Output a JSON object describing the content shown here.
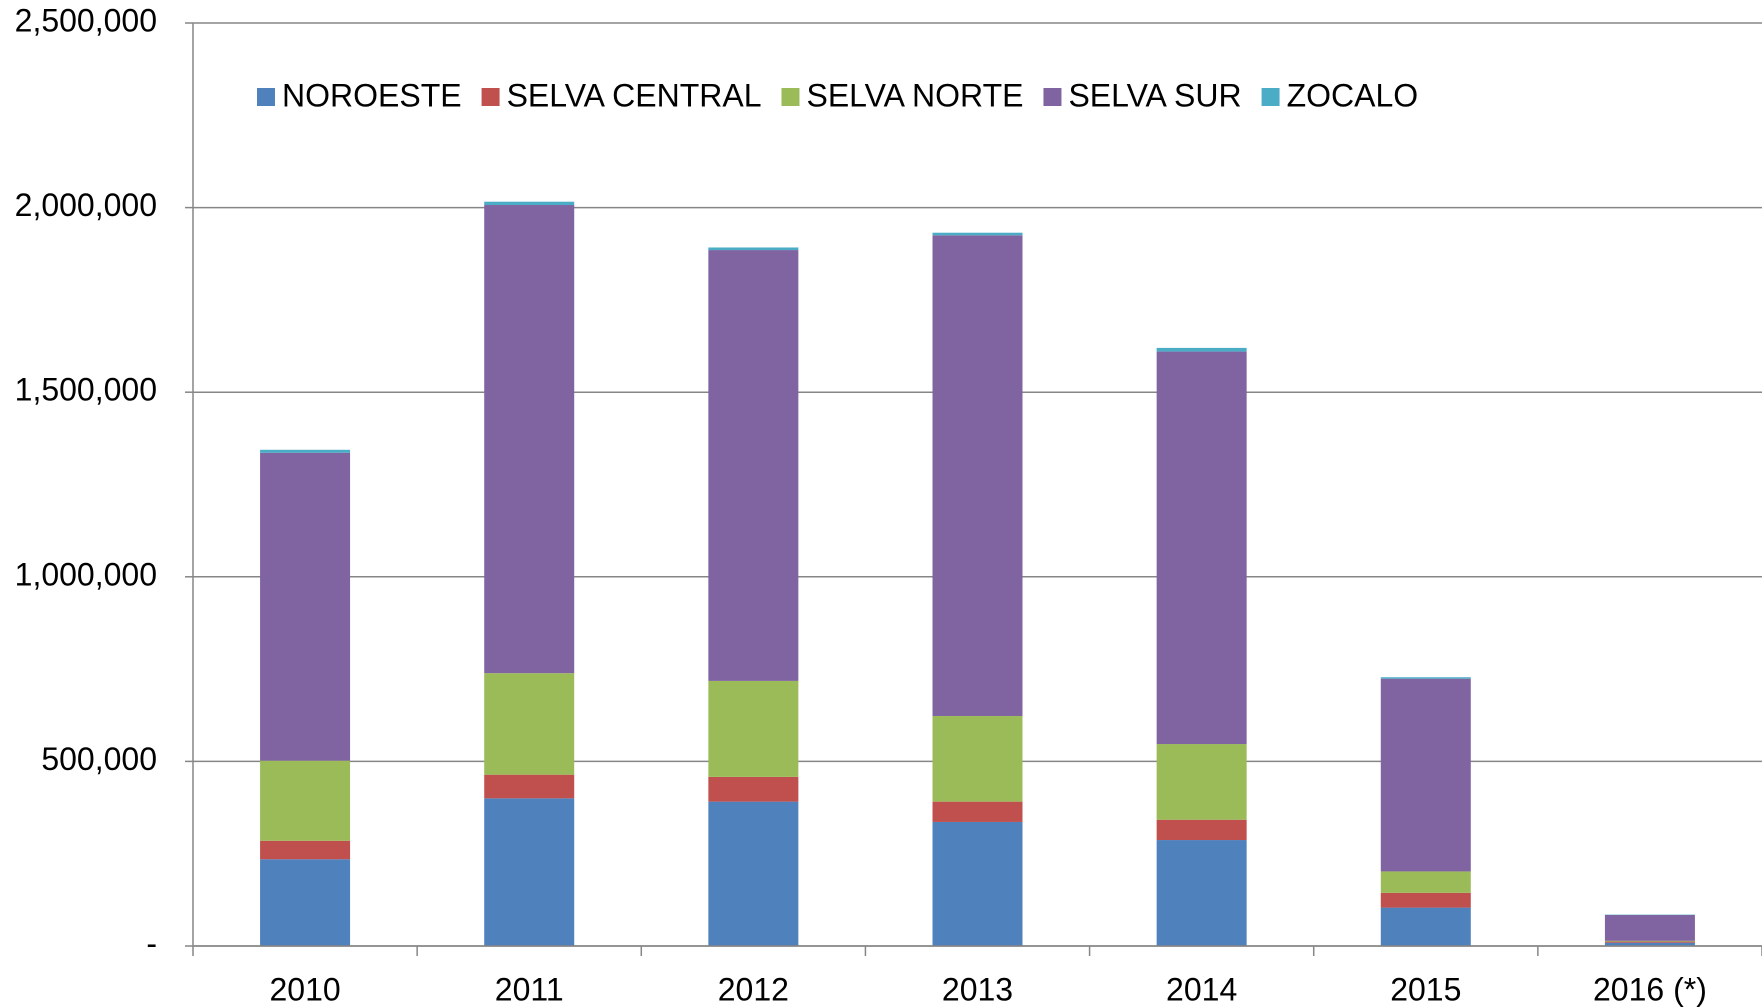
{
  "chart_data": {
    "type": "stacked_bar",
    "categories": [
      "2010",
      "2011",
      "2012",
      "2013",
      "2014",
      "2015",
      "2016 (*)"
    ],
    "series": [
      {
        "name": "NOROESTE",
        "color": "#4f81bd",
        "values": [
          235000,
          400000,
          391000,
          336000,
          287000,
          104000,
          9000
        ]
      },
      {
        "name": "SELVA CENTRAL",
        "color": "#c0504d",
        "values": [
          50000,
          64000,
          67000,
          55000,
          55000,
          40000,
          3000
        ]
      },
      {
        "name": "SELVA NORTE",
        "color": "#9bbb59",
        "values": [
          217000,
          275000,
          260000,
          232000,
          205000,
          58000,
          2000
        ]
      },
      {
        "name": "SELVA SUR",
        "color": "#8064a2",
        "values": [
          834000,
          1268000,
          1167000,
          1302000,
          1063000,
          522000,
          70000
        ]
      },
      {
        "name": "ZOCALO",
        "color": "#4bacc6",
        "values": [
          8000,
          9000,
          7000,
          7000,
          10000,
          4000,
          1000
        ]
      }
    ],
    "ylim": [
      0,
      2500000
    ],
    "yticks": [
      {
        "value": 0,
        "label": "-"
      },
      {
        "value": 500000,
        "label": "500,000"
      },
      {
        "value": 1000000,
        "label": "1,000,000"
      },
      {
        "value": 1500000,
        "label": "1,500,000"
      },
      {
        "value": 2000000,
        "label": "2,000,000"
      },
      {
        "value": 2500000,
        "label": "2,500,000"
      }
    ],
    "grid": true,
    "legend": "top"
  }
}
